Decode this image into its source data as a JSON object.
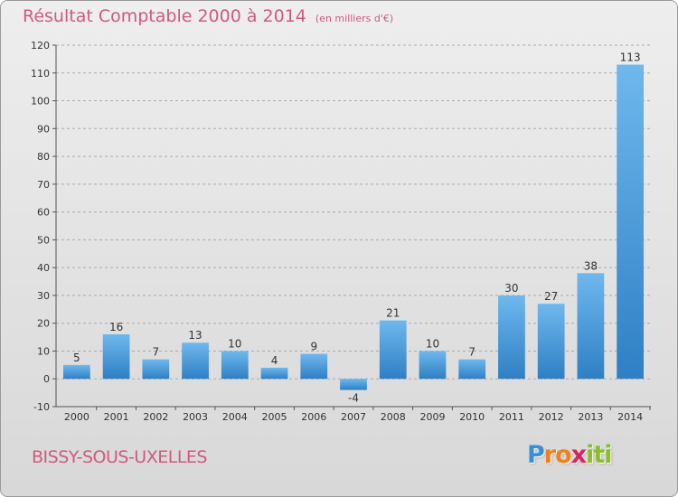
{
  "header": {
    "title": "Résultat Comptable 2000 à 2014",
    "subtitle": "(en milliers d'€)"
  },
  "footer": {
    "commune": "BISSY-SOUS-UXELLES",
    "logo_letters": [
      "P",
      "r",
      "o",
      "x",
      "i",
      "t",
      "i"
    ],
    "logo_colors": [
      "#3b8fd8",
      "#f07f1f",
      "#f07f1f",
      "#d8265a",
      "#8cbd2a",
      "#8cbd2a",
      "#8cbd2a"
    ]
  },
  "colors": {
    "title": "#d05a7e",
    "bar_light": "#6fb8ee",
    "bar_dark": "#2e7fc4",
    "grid": "#aaaaaa"
  },
  "chart_data": {
    "type": "bar",
    "categories": [
      "2000",
      "2001",
      "2002",
      "2003",
      "2004",
      "2005",
      "2006",
      "2007",
      "2008",
      "2009",
      "2010",
      "2011",
      "2012",
      "2013",
      "2014"
    ],
    "values": [
      5,
      16,
      7,
      13,
      10,
      4,
      9,
      -4,
      21,
      10,
      7,
      30,
      27,
      38,
      113
    ],
    "ylim": [
      -10,
      120
    ],
    "yticks": [
      -10,
      0,
      10,
      20,
      30,
      40,
      50,
      60,
      70,
      80,
      90,
      100,
      110,
      120
    ],
    "grid": true,
    "legend": "none"
  }
}
